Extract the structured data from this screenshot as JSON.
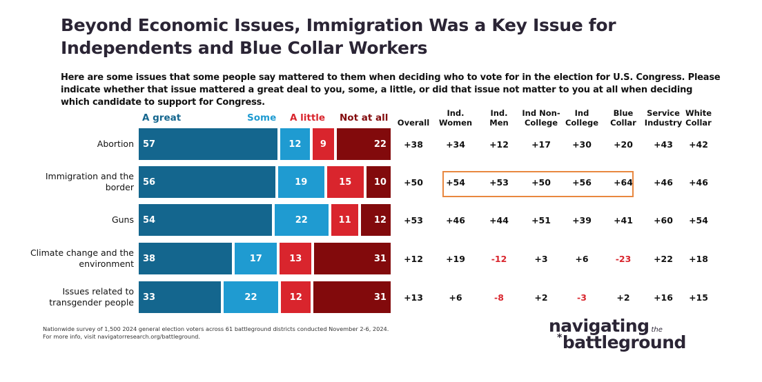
{
  "title": "Beyond Economic Issues, Immigration Was a Key Issue for Independents and Blue Collar Workers",
  "subtitle": "Here are some issues that some people say mattered to them when deciding who to vote for in the election for U.S. Congress. Please indicate whether that issue mattered a great deal to you, some, a little, or did that issue not matter to you at all when deciding which candidate to support for Congress.",
  "colors": {
    "great": "#14668e",
    "some": "#1f9bd1",
    "little": "#d9252d",
    "notatall": "#820a0c",
    "negative": "#d9252d",
    "highlight": "#e8873f"
  },
  "chart_data": {
    "type": "bar",
    "orientation": "horizontal-stacked",
    "title": "Beyond Economic Issues, Immigration Was a Key Issue for Independents and Blue Collar Workers",
    "legend": [
      "A great",
      "Some",
      "A little",
      "Not at all"
    ],
    "legend_placement": "top",
    "categories": [
      "Abortion",
      "Immigration and the border",
      "Guns",
      "Climate change and the environment",
      "Issues related to transgender people"
    ],
    "series": [
      {
        "name": "A great",
        "values": [
          57,
          56,
          54,
          38,
          33
        ]
      },
      {
        "name": "Some",
        "values": [
          12,
          19,
          22,
          17,
          22
        ]
      },
      {
        "name": "A little",
        "values": [
          9,
          15,
          11,
          13,
          12
        ]
      },
      {
        "name": "Not at all",
        "values": [
          22,
          10,
          12,
          31,
          31
        ]
      }
    ],
    "table": {
      "columns": [
        "Overall",
        "Ind. Women",
        "Ind. Men",
        "Ind Non-College",
        "Ind College",
        "Blue Collar",
        "Service Industry",
        "White Collar"
      ],
      "rows": [
        [
          "+38",
          "+34",
          "+12",
          "+17",
          "+30",
          "+20",
          "+43",
          "+42"
        ],
        [
          "+50",
          "+54",
          "+53",
          "+50",
          "+56",
          "+64",
          "+46",
          "+46"
        ],
        [
          "+53",
          "+46",
          "+44",
          "+51",
          "+39",
          "+41",
          "+60",
          "+54"
        ],
        [
          "+12",
          "+19",
          "-12",
          "+3",
          "+6",
          "-23",
          "+22",
          "+18"
        ],
        [
          "+13",
          "+6",
          "-8",
          "+2",
          "-3",
          "+2",
          "+16",
          "+15"
        ]
      ],
      "highlighted": {
        "row": "Immigration and the border",
        "columns": [
          "Ind. Women",
          "Ind. Men",
          "Ind Non-College",
          "Ind College",
          "Blue Collar"
        ]
      }
    }
  },
  "columns_display": [
    [
      "",
      "Overall"
    ],
    [
      "Ind.",
      "Women"
    ],
    [
      "Ind.",
      "Men"
    ],
    [
      "Ind Non-",
      "College"
    ],
    [
      "Ind",
      "College"
    ],
    [
      "Blue",
      "Collar"
    ],
    [
      "Service",
      "Industry"
    ],
    [
      "White",
      "Collar"
    ]
  ],
  "row_labels_display": [
    [
      "Abortion"
    ],
    [
      "Immigration and the",
      "border"
    ],
    [
      "Guns"
    ],
    [
      "Climate change and the",
      "environment"
    ],
    [
      "Issues related to",
      "transgender people"
    ]
  ],
  "footnote": {
    "line1": "Nationwide survey of 1,500 2024 general election voters across 61 battleground districts conducted November 2-6, 2024.",
    "line2": "For more info, visit navigatorresearch.org/battleground."
  },
  "logo": {
    "line1": "navigating",
    "the": "the",
    "star": "*",
    "line2": "battleground"
  }
}
